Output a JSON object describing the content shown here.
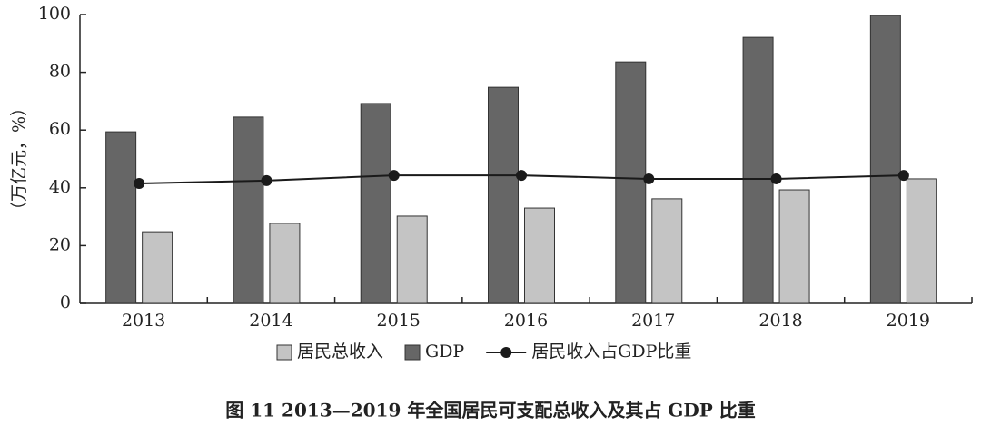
{
  "chart_data": {
    "type": "bar",
    "title": "图 11 2013—2019 年全国居民可支配总收入及其占 GDP 比重",
    "y_label": "（万亿元，%）",
    "categories": [
      "2013",
      "2014",
      "2015",
      "2016",
      "2017",
      "2018",
      "2019"
    ],
    "series": [
      {
        "name": "GDP",
        "type": "bar",
        "color": "#666666",
        "values": [
          59.4,
          64.5,
          69.2,
          74.8,
          83.6,
          92.1,
          99.7
        ]
      },
      {
        "name": "居民总收入",
        "type": "bar",
        "color": "#c4c4c4",
        "values": [
          24.8,
          27.7,
          30.2,
          33.0,
          36.2,
          39.3,
          43.1
        ]
      },
      {
        "name": "居民收入占GDP比重",
        "type": "line",
        "color": "#1a1a1a",
        "values": [
          41.5,
          42.5,
          44.3,
          44.3,
          43.1,
          43.1,
          44.3
        ]
      }
    ],
    "legend_order": [
      1,
      0,
      2
    ],
    "ylim": [
      0,
      100
    ],
    "yticks": [
      0,
      20,
      40,
      60,
      80,
      100
    ],
    "grid": false
  }
}
